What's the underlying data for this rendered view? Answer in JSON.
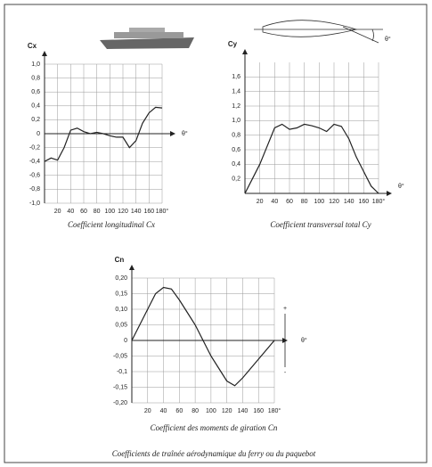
{
  "chart_data": [
    {
      "type": "line",
      "title": "Coefficient longitudinal Cx",
      "ylabel": "Cx",
      "xlabel": "θ°",
      "x": [
        0,
        10,
        20,
        30,
        40,
        50,
        60,
        70,
        80,
        90,
        100,
        110,
        120,
        130,
        140,
        150,
        160,
        170,
        180
      ],
      "values": [
        -0.4,
        -0.35,
        -0.38,
        -0.2,
        0.05,
        0.08,
        0.03,
        0.0,
        0.02,
        0.0,
        -0.03,
        -0.05,
        -0.05,
        -0.2,
        -0.1,
        0.15,
        0.3,
        0.38,
        0.37
      ],
      "xlim": [
        0,
        180
      ],
      "ylim": [
        -1,
        1
      ],
      "xticks": [
        20,
        40,
        60,
        80,
        100,
        120,
        140,
        160,
        {
          "value": 180,
          "label": "180°"
        }
      ],
      "yticks": [
        {
          "value": 1,
          "label": "1,0"
        },
        {
          "value": 0.8,
          "label": "0,8"
        },
        {
          "value": 0.6,
          "label": "0,6"
        },
        {
          "value": 0.4,
          "label": "0,4"
        },
        {
          "value": 0.2,
          "label": "0,2"
        },
        0,
        {
          "value": -0.2,
          "label": "-0,2"
        },
        {
          "value": -0.4,
          "label": "-0,4"
        },
        {
          "value": -0.6,
          "label": "-0,6"
        },
        {
          "value": -0.8,
          "label": "-0,8"
        },
        {
          "value": -1,
          "label": "-1,0"
        }
      ],
      "grid": true,
      "color": "#222"
    },
    {
      "type": "line",
      "title": "Coefficient transversal total Cy",
      "ylabel": "Cy",
      "xlabel": "θ°",
      "diagram_label": "θ°",
      "x": [
        0,
        10,
        20,
        30,
        40,
        50,
        60,
        70,
        80,
        90,
        100,
        110,
        120,
        130,
        140,
        150,
        160,
        170,
        180
      ],
      "values": [
        0,
        0.2,
        0.4,
        0.65,
        0.9,
        0.95,
        0.88,
        0.9,
        0.95,
        0.93,
        0.9,
        0.85,
        0.95,
        0.92,
        0.75,
        0.5,
        0.3,
        0.1,
        0
      ],
      "xlim": [
        0,
        180
      ],
      "ylim": [
        0,
        1.8
      ],
      "xticks": [
        20,
        40,
        60,
        80,
        100,
        120,
        140,
        160,
        {
          "value": 180,
          "label": "180°"
        }
      ],
      "yticks": [
        {
          "value": 0.2,
          "label": "0,2"
        },
        {
          "value": 0.4,
          "label": "0,4"
        },
        {
          "value": 0.6,
          "label": "0,6"
        },
        {
          "value": 0.8,
          "label": "0,8"
        },
        {
          "value": 1,
          "label": "1,0"
        },
        {
          "value": 1.2,
          "label": "1,2"
        },
        {
          "value": 1.4,
          "label": "1,4"
        },
        {
          "value": 1.6,
          "label": "1,6"
        }
      ],
      "grid": true,
      "color": "#222"
    },
    {
      "type": "line",
      "title": "Coefficient des moments de giration Cn",
      "ylabel": "Cn",
      "xlabel": "θ°",
      "plus_label": "+",
      "minus_label": "-",
      "x": [
        0,
        10,
        20,
        30,
        40,
        50,
        60,
        70,
        80,
        90,
        100,
        110,
        120,
        130,
        140,
        150,
        160,
        170,
        180
      ],
      "values": [
        0,
        0.05,
        0.1,
        0.15,
        0.17,
        0.165,
        0.13,
        0.09,
        0.05,
        0,
        -0.05,
        -0.09,
        -0.13,
        -0.145,
        -0.12,
        -0.09,
        -0.06,
        -0.03,
        0
      ],
      "xlim": [
        0,
        180
      ],
      "ylim": [
        -0.2,
        0.2
      ],
      "xticks": [
        20,
        40,
        60,
        80,
        100,
        120,
        140,
        160,
        {
          "value": 180,
          "label": "180°"
        }
      ],
      "yticks": [
        {
          "value": 0.2,
          "label": "0,20"
        },
        {
          "value": 0.15,
          "label": "0,15"
        },
        {
          "value": 0.1,
          "label": "0,10"
        },
        {
          "value": 0.05,
          "label": "0,05"
        },
        0,
        {
          "value": -0.05,
          "label": "-0,05"
        },
        {
          "value": -0.1,
          "label": "-0,1"
        },
        {
          "value": -0.15,
          "label": "-0,15"
        },
        {
          "value": -0.2,
          "label": "-0,20"
        }
      ],
      "grid": true,
      "color": "#222"
    }
  ],
  "caption": "Coefficients de traînée aérodynamique du ferry ou du paquebot"
}
